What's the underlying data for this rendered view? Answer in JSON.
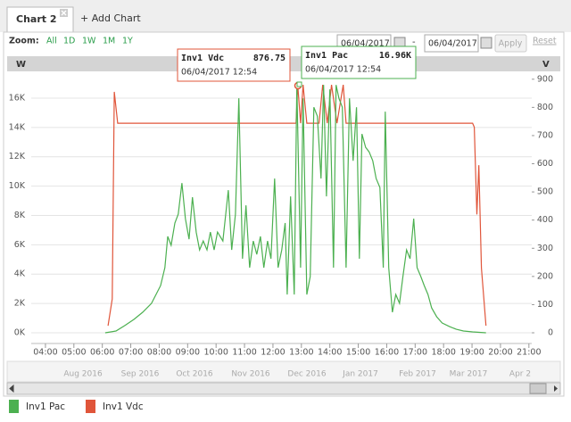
{
  "tabs": {
    "active": "Chart 2",
    "add": "+ Add Chart"
  },
  "toolbar": {
    "zoom_label": "Zoom:",
    "zoom_options": [
      "All",
      "1D",
      "1W",
      "1M",
      "1Y"
    ],
    "date_from": "06/04/2017",
    "separator": "-",
    "date_to": "06/04/2017",
    "apply": "Apply",
    "reset": "Reset"
  },
  "axis_units": {
    "left": "W",
    "right": "V"
  },
  "tooltips": [
    {
      "value": "876.75",
      "time": "06/04/2017  12:54"
    },
    {
      "value": "16.96K",
      "time": "06/04/2017  12:54"
    }
  ],
  "navigator": {
    "labels": [
      "Aug 2016",
      "Sep 2016",
      "Oct 2016",
      "Nov 2016",
      "Dec 2016",
      "Jan 2017",
      "Feb 2017",
      "Mar 2017",
      "Apr 2"
    ]
  },
  "chart_data": {
    "type": "line",
    "grid": true,
    "xlim": [
      3.5,
      21.1
    ],
    "xticks": [
      {
        "value": 4,
        "label": "04:00"
      },
      {
        "value": 5,
        "label": "05:00"
      },
      {
        "value": 6,
        "label": "06:00"
      },
      {
        "value": 7,
        "label": "07:00"
      },
      {
        "value": 8,
        "label": "08:00"
      },
      {
        "value": 9,
        "label": "09:00"
      },
      {
        "value": 10,
        "label": "10:00"
      },
      {
        "value": 11,
        "label": "11:00"
      },
      {
        "value": 12,
        "label": "12:00"
      },
      {
        "value": 13,
        "label": "13:00"
      },
      {
        "value": 14,
        "label": "14:00"
      },
      {
        "value": 15,
        "label": "15:00"
      },
      {
        "value": 16,
        "label": "16:00"
      },
      {
        "value": 17,
        "label": "17:00"
      },
      {
        "value": 18,
        "label": "18:00"
      },
      {
        "value": 19,
        "label": "19:00"
      },
      {
        "value": 20,
        "label": "20:00"
      },
      {
        "value": 21,
        "label": "21:00"
      }
    ],
    "ylim": [
      0,
      17520
    ],
    "yticks": [
      {
        "value": 0,
        "label": "0K"
      },
      {
        "value": 2000,
        "label": "2K"
      },
      {
        "value": 4000,
        "label": "4K"
      },
      {
        "value": 6000,
        "label": "6K"
      },
      {
        "value": 8000,
        "label": "8K"
      },
      {
        "value": 10000,
        "label": "10K"
      },
      {
        "value": 12000,
        "label": "12K"
      },
      {
        "value": 14000,
        "label": "14K"
      },
      {
        "value": 16000,
        "label": "16K"
      }
    ],
    "y2lim": [
      0,
      912
    ],
    "y2ticks": [
      0,
      100,
      200,
      300,
      400,
      500,
      600,
      700,
      800,
      900
    ],
    "series": [
      {
        "name": "Inv1 Pac",
        "color": "#4cb050",
        "x": [
          6.1,
          6.48,
          6.79,
          7.11,
          7.42,
          7.73,
          8.05,
          8.2,
          8.3,
          8.42,
          8.55,
          8.67,
          8.8,
          8.92,
          9.05,
          9.17,
          9.3,
          9.42,
          9.55,
          9.68,
          9.8,
          9.93,
          10.05,
          10.24,
          10.43,
          10.55,
          10.68,
          10.8,
          10.93,
          11.05,
          11.18,
          11.31,
          11.43,
          11.56,
          11.68,
          11.81,
          11.93,
          12.06,
          12.18,
          12.31,
          12.43,
          12.5,
          12.62,
          12.75,
          12.84,
          12.97,
          13.06,
          13.19,
          13.31,
          13.44,
          13.56,
          13.69,
          13.78,
          13.88,
          14.0,
          14.13,
          14.22,
          14.32,
          14.44,
          14.57,
          14.69,
          14.82,
          14.94,
          15.04,
          15.13,
          15.26,
          15.38,
          15.51,
          15.63,
          15.76,
          15.88,
          15.95,
          16.07,
          16.2,
          16.32,
          16.45,
          16.57,
          16.7,
          16.82,
          16.95,
          17.07,
          17.2,
          17.32,
          17.45,
          17.58,
          17.76,
          17.95,
          18.2,
          18.45,
          18.7,
          19.02,
          19.49
        ],
        "values": [
          0,
          120,
          490,
          910,
          1400,
          2010,
          3220,
          4440,
          6570,
          5960,
          7480,
          8090,
          10210,
          7780,
          6380,
          9240,
          6870,
          5650,
          6260,
          5650,
          6870,
          5650,
          6870,
          6260,
          9730,
          5650,
          8090,
          15990,
          5050,
          8690,
          4440,
          6260,
          5350,
          6570,
          4440,
          6260,
          5050,
          10520,
          4440,
          5650,
          7480,
          2610,
          9300,
          2610,
          16900,
          4440,
          15990,
          2610,
          3830,
          15380,
          14770,
          10520,
          16900,
          9300,
          16600,
          4440,
          16900,
          15990,
          15380,
          4440,
          15990,
          11730,
          15380,
          5050,
          13560,
          12650,
          12340,
          11730,
          10520,
          9910,
          4440,
          15080,
          4440,
          1400,
          2610,
          2010,
          3830,
          5650,
          5050,
          7780,
          4440,
          3830,
          3220,
          2610,
          1700,
          1090,
          670,
          430,
          240,
          120,
          60,
          0
        ]
      },
      {
        "name": "Inv1 Vdc",
        "color": "#e0553a",
        "axis": "y2",
        "x": [
          6.2,
          6.35,
          6.42,
          6.54,
          12.81,
          12.87,
          12.97,
          13.06,
          13.19,
          13.62,
          13.75,
          13.91,
          14.06,
          14.25,
          14.47,
          14.57,
          19.02,
          19.08,
          19.17,
          19.24,
          19.33,
          19.49
        ],
        "values": [
          25,
          120,
          855,
          744,
          744,
          880,
          744,
          880,
          744,
          744,
          880,
          744,
          880,
          744,
          880,
          744,
          744,
          730,
          420,
          595,
          230,
          25
        ]
      }
    ]
  }
}
